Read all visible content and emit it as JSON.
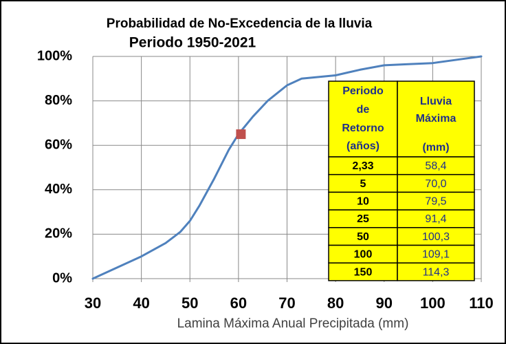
{
  "chart_data": {
    "type": "line",
    "title": "Probabilidad  de No-Excedencia de la lluvia",
    "subtitle": "Periodo 1950-2021",
    "x_label": "Lamina Máxima Anual Precipitada (mm)",
    "xlim": [
      30,
      110
    ],
    "xticks": [
      30,
      40,
      50,
      60,
      70,
      80,
      90,
      100,
      110
    ],
    "ylim": [
      0,
      100
    ],
    "yticks": [
      {
        "value": 0,
        "label": "0%"
      },
      {
        "value": 20,
        "label": "20%"
      },
      {
        "value": 40,
        "label": "40%"
      },
      {
        "value": 60,
        "label": "60%"
      },
      {
        "value": 80,
        "label": "80%"
      },
      {
        "value": 100,
        "label": "100%"
      }
    ],
    "grid": true,
    "series": [
      {
        "color": "#4f81bd",
        "x": [
          30,
          35,
          40,
          45,
          48,
          50,
          52,
          55,
          58,
          60,
          63,
          66,
          70,
          73,
          80,
          85,
          90,
          95,
          100,
          105,
          110
        ],
        "values": [
          0,
          5,
          10,
          16,
          21,
          26,
          33,
          45,
          58,
          65,
          73,
          80,
          87,
          90,
          91.5,
          94,
          96,
          96.5,
          97,
          98.5,
          100
        ]
      }
    ],
    "marker": {
      "x": 60.5,
      "y": 65,
      "color": "#c0504d"
    },
    "table": {
      "header": [
        [
          "Periodo",
          "de",
          "Retorno",
          "(años)"
        ],
        [
          "Lluvia",
          "Máxima",
          "(mm)"
        ]
      ],
      "rows": [
        [
          "2,33",
          "58,4"
        ],
        [
          "5",
          "70,0"
        ],
        [
          "10",
          "79,5"
        ],
        [
          "25",
          "91,4"
        ],
        [
          "50",
          "100,3"
        ],
        [
          "100",
          "109,1"
        ],
        [
          "150",
          "114,3"
        ]
      ]
    }
  }
}
